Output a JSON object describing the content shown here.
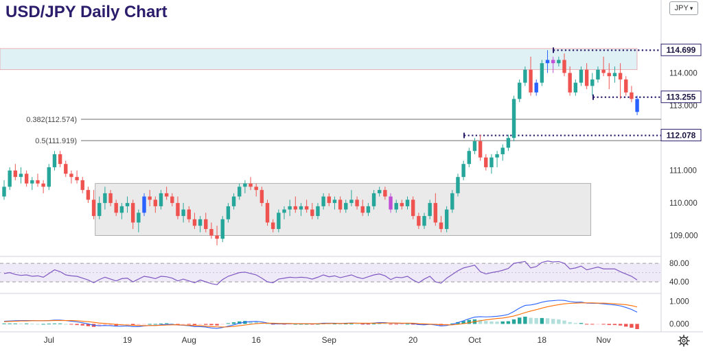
{
  "title": "USD/JPY Daily Chart",
  "currency_selector": {
    "value": "JPY",
    "icon": "chevron-down-icon"
  },
  "settings_icon": "gear-icon",
  "colors": {
    "up": "#26a69a",
    "down": "#ef5350",
    "up_alt": "#2962ff",
    "down_alt": "#c04fd6",
    "title": "#2b1d6b",
    "dotted": "#2b1d6b",
    "rsi": "#7e57c2",
    "macd_line": "#2962ff",
    "signal_line": "#ff6d00",
    "range_box": "#e6e6e6",
    "resistance_zone": "#dff1f5"
  },
  "chart_data": [
    {
      "type": "candlestick",
      "x_labels": [
        "Jul",
        "19",
        "Aug",
        "16",
        "Sep",
        "20",
        "Oct",
        "18",
        "Nov"
      ],
      "y_ticks": [
        "109.000",
        "110.000",
        "111.000",
        "112.000",
        "113.000",
        "114.000"
      ],
      "ylim": [
        108.4,
        115.4
      ],
      "price_labels": [
        "114.699",
        "113.255",
        "112.078"
      ],
      "fib_levels": [
        {
          "label": "0.382(112.574)",
          "value": 112.574
        },
        {
          "label": "0.5(111.919)",
          "value": 111.919
        }
      ],
      "zones": [
        {
          "kind": "resistance",
          "from": 114.1,
          "to": 114.75
        },
        {
          "kind": "range",
          "from": 109.0,
          "to": 110.6,
          "start_index": 17,
          "end_index": 104
        }
      ],
      "ohlc": [
        [
          110.2,
          110.7,
          110.1,
          110.5
        ],
        [
          110.5,
          111.1,
          110.4,
          111.0
        ],
        [
          111.0,
          111.2,
          110.7,
          110.8
        ],
        [
          110.8,
          111.1,
          110.6,
          110.9
        ],
        [
          110.9,
          111.0,
          110.5,
          110.6
        ],
        [
          110.6,
          110.8,
          110.4,
          110.7
        ],
        [
          110.7,
          110.9,
          110.5,
          110.6
        ],
        [
          110.6,
          110.7,
          110.3,
          110.5
        ],
        [
          110.5,
          111.2,
          110.4,
          111.1
        ],
        [
          111.1,
          111.6,
          111.0,
          111.5
        ],
        [
          111.5,
          111.6,
          111.1,
          111.2
        ],
        [
          111.2,
          111.3,
          110.8,
          110.9
        ],
        [
          110.9,
          111.0,
          110.6,
          110.8
        ],
        [
          110.8,
          111.0,
          110.6,
          110.7
        ],
        [
          110.7,
          110.8,
          110.3,
          110.4
        ],
        [
          110.4,
          110.5,
          110.0,
          110.1
        ],
        [
          110.1,
          110.4,
          109.5,
          109.6
        ],
        [
          109.6,
          110.2,
          109.5,
          110.0
        ],
        [
          110.0,
          110.5,
          109.8,
          110.3
        ],
        [
          110.3,
          110.4,
          109.9,
          110.0
        ],
        [
          110.0,
          110.1,
          109.6,
          109.7
        ],
        [
          109.7,
          110.0,
          109.5,
          109.9
        ],
        [
          109.9,
          110.2,
          109.7,
          110.0
        ],
        [
          110.0,
          110.1,
          109.2,
          109.4
        ],
        [
          109.4,
          109.8,
          109.1,
          109.7
        ],
        [
          109.7,
          110.3,
          109.6,
          110.2
        ],
        [
          110.2,
          110.4,
          109.9,
          110.1
        ],
        [
          110.1,
          110.2,
          109.7,
          109.9
        ],
        [
          109.9,
          110.4,
          109.8,
          110.3
        ],
        [
          110.3,
          110.5,
          110.1,
          110.2
        ],
        [
          110.2,
          110.3,
          109.9,
          110.0
        ],
        [
          110.0,
          110.2,
          109.5,
          109.6
        ],
        [
          109.6,
          110.0,
          109.4,
          109.8
        ],
        [
          109.8,
          109.9,
          109.4,
          109.5
        ],
        [
          109.5,
          109.7,
          109.2,
          109.3
        ],
        [
          109.3,
          109.6,
          109.1,
          109.5
        ],
        [
          109.5,
          109.7,
          109.1,
          109.2
        ],
        [
          109.2,
          109.4,
          108.9,
          109.0
        ],
        [
          109.0,
          109.3,
          108.7,
          108.9
        ],
        [
          108.9,
          109.6,
          108.8,
          109.5
        ],
        [
          109.5,
          110.0,
          109.4,
          109.9
        ],
        [
          109.9,
          110.3,
          109.8,
          110.2
        ],
        [
          110.2,
          110.6,
          110.1,
          110.5
        ],
        [
          110.5,
          110.7,
          110.3,
          110.6
        ],
        [
          110.6,
          110.8,
          110.4,
          110.5
        ],
        [
          110.5,
          110.6,
          110.2,
          110.4
        ],
        [
          110.4,
          110.5,
          109.9,
          110.0
        ],
        [
          110.0,
          110.1,
          109.3,
          109.4
        ],
        [
          109.4,
          109.5,
          109.1,
          109.2
        ],
        [
          109.2,
          109.8,
          109.1,
          109.7
        ],
        [
          109.7,
          109.9,
          109.5,
          109.8
        ],
        [
          109.8,
          110.1,
          109.6,
          109.9
        ],
        [
          109.9,
          110.2,
          109.7,
          109.8
        ],
        [
          109.8,
          110.0,
          109.6,
          109.9
        ],
        [
          109.9,
          110.1,
          109.7,
          109.8
        ],
        [
          109.8,
          110.0,
          109.5,
          109.6
        ],
        [
          109.6,
          110.0,
          109.5,
          109.9
        ],
        [
          109.9,
          110.3,
          109.8,
          110.2
        ],
        [
          110.2,
          110.3,
          109.9,
          110.0
        ],
        [
          110.0,
          110.2,
          109.8,
          110.1
        ],
        [
          110.1,
          110.2,
          109.7,
          109.8
        ],
        [
          109.8,
          110.1,
          109.7,
          110.0
        ],
        [
          110.0,
          110.4,
          109.9,
          110.1
        ],
        [
          110.1,
          110.2,
          109.8,
          109.9
        ],
        [
          109.9,
          110.1,
          109.6,
          109.7
        ],
        [
          109.7,
          110.0,
          109.6,
          109.9
        ],
        [
          109.9,
          110.4,
          109.8,
          110.3
        ],
        [
          110.3,
          110.5,
          110.2,
          110.4
        ],
        [
          110.4,
          110.5,
          110.1,
          110.2
        ],
        [
          110.2,
          110.3,
          109.7,
          109.8
        ],
        [
          109.8,
          110.1,
          109.7,
          110.0
        ],
        [
          110.0,
          110.1,
          109.8,
          109.9
        ],
        [
          109.9,
          110.2,
          109.8,
          110.1
        ],
        [
          110.1,
          110.2,
          109.5,
          109.6
        ],
        [
          109.6,
          109.7,
          109.2,
          109.3
        ],
        [
          109.3,
          109.7,
          109.2,
          109.6
        ],
        [
          109.6,
          110.1,
          109.5,
          110.0
        ],
        [
          110.0,
          110.3,
          109.3,
          109.4
        ],
        [
          109.4,
          109.6,
          109.1,
          109.2
        ],
        [
          109.2,
          109.9,
          109.1,
          109.8
        ],
        [
          109.8,
          110.4,
          109.7,
          110.3
        ],
        [
          110.3,
          110.9,
          110.2,
          110.8
        ],
        [
          110.8,
          111.3,
          110.7,
          111.2
        ],
        [
          111.2,
          111.7,
          111.1,
          111.6
        ],
        [
          111.6,
          112.0,
          111.5,
          111.9
        ],
        [
          111.9,
          112.1,
          111.3,
          111.4
        ],
        [
          111.4,
          111.5,
          111.0,
          111.1
        ],
        [
          111.1,
          111.5,
          110.9,
          111.4
        ],
        [
          111.4,
          111.6,
          111.1,
          111.5
        ],
        [
          111.5,
          111.8,
          111.3,
          111.7
        ],
        [
          111.7,
          112.1,
          111.6,
          112.0
        ],
        [
          112.0,
          113.3,
          111.9,
          113.2
        ],
        [
          113.2,
          113.8,
          113.1,
          113.7
        ],
        [
          113.7,
          114.2,
          113.6,
          114.1
        ],
        [
          114.1,
          114.5,
          113.3,
          113.4
        ],
        [
          113.4,
          113.8,
          113.3,
          113.7
        ],
        [
          113.7,
          114.4,
          113.6,
          114.3
        ],
        [
          114.3,
          114.7,
          114.0,
          114.4
        ],
        [
          114.4,
          114.5,
          114.0,
          114.3
        ],
        [
          114.3,
          114.5,
          114.2,
          114.4
        ],
        [
          114.4,
          114.6,
          113.9,
          114.0
        ],
        [
          114.0,
          114.2,
          113.3,
          113.4
        ],
        [
          113.4,
          113.8,
          113.3,
          113.7
        ],
        [
          113.7,
          114.2,
          113.6,
          114.1
        ],
        [
          114.1,
          114.3,
          113.5,
          113.6
        ],
        [
          113.6,
          114.0,
          113.3,
          113.8
        ],
        [
          113.8,
          114.2,
          113.7,
          114.1
        ],
        [
          114.1,
          114.5,
          113.9,
          114.0
        ],
        [
          114.0,
          114.3,
          113.5,
          113.9
        ],
        [
          113.9,
          114.2,
          113.7,
          114.0
        ],
        [
          114.0,
          114.3,
          113.2,
          113.8
        ],
        [
          113.8,
          113.9,
          113.3,
          113.4
        ],
        [
          113.4,
          113.6,
          113.1,
          113.2
        ],
        [
          113.2,
          113.3,
          112.7,
          112.8
        ]
      ]
    },
    {
      "type": "line",
      "name": "RSI",
      "y_ticks": [
        "80.00",
        "40.00"
      ],
      "ylim": [
        15,
        95
      ],
      "values": [
        58,
        60,
        56,
        54,
        55,
        52,
        53,
        50,
        58,
        66,
        62,
        55,
        53,
        52,
        48,
        44,
        38,
        45,
        50,
        46,
        42,
        47,
        48,
        40,
        46,
        52,
        50,
        47,
        52,
        51,
        48,
        42,
        46,
        42,
        38,
        44,
        40,
        36,
        34,
        45,
        52,
        56,
        60,
        61,
        58,
        55,
        48,
        40,
        38,
        46,
        48,
        50,
        49,
        50,
        49,
        46,
        50,
        55,
        51,
        53,
        49,
        52,
        55,
        50,
        47,
        51,
        55,
        57,
        53,
        45,
        50,
        49,
        52,
        44,
        38,
        46,
        52,
        40,
        37,
        48,
        56,
        64,
        70,
        73,
        76,
        62,
        57,
        60,
        62,
        65,
        69,
        80,
        82,
        84,
        70,
        73,
        82,
        85,
        83,
        84,
        80,
        68,
        70,
        74,
        66,
        69,
        72,
        68,
        68,
        68,
        62,
        57,
        52,
        44
      ]
    },
    {
      "type": "line",
      "name": "MACD",
      "y_ticks": [
        "1.000",
        "0.000"
      ],
      "ylim": [
        -0.35,
        1.35
      ],
      "macd": [
        0.12,
        0.13,
        0.14,
        0.15,
        0.15,
        0.15,
        0.14,
        0.14,
        0.15,
        0.17,
        0.17,
        0.15,
        0.12,
        0.09,
        0.05,
        0.0,
        -0.06,
        -0.08,
        -0.07,
        -0.08,
        -0.1,
        -0.1,
        -0.09,
        -0.12,
        -0.12,
        -0.09,
        -0.07,
        -0.07,
        -0.04,
        -0.02,
        -0.02,
        -0.05,
        -0.06,
        -0.08,
        -0.12,
        -0.12,
        -0.14,
        -0.18,
        -0.2,
        -0.16,
        -0.1,
        -0.04,
        0.03,
        0.08,
        0.1,
        0.11,
        0.09,
        0.04,
        0.0,
        0.0,
        0.0,
        0.01,
        0.01,
        0.01,
        0.01,
        0.0,
        0.01,
        0.03,
        0.03,
        0.03,
        0.02,
        0.03,
        0.04,
        0.03,
        0.02,
        0.02,
        0.04,
        0.06,
        0.06,
        0.03,
        0.03,
        0.02,
        0.03,
        0.01,
        -0.03,
        -0.04,
        -0.02,
        -0.05,
        -0.09,
        -0.07,
        -0.02,
        0.06,
        0.14,
        0.23,
        0.3,
        0.32,
        0.31,
        0.32,
        0.34,
        0.37,
        0.42,
        0.55,
        0.7,
        0.82,
        0.84,
        0.89,
        0.96,
        1.01,
        1.03,
        1.05,
        1.04,
        0.99,
        0.96,
        0.97,
        0.92,
        0.91,
        0.91,
        0.89,
        0.86,
        0.84,
        0.8,
        0.73,
        0.64,
        0.52
      ],
      "signal": [
        0.1,
        0.11,
        0.12,
        0.13,
        0.13,
        0.14,
        0.14,
        0.14,
        0.14,
        0.15,
        0.15,
        0.15,
        0.15,
        0.14,
        0.12,
        0.1,
        0.07,
        0.04,
        0.02,
        0.0,
        -0.02,
        -0.04,
        -0.05,
        -0.06,
        -0.07,
        -0.08,
        -0.07,
        -0.07,
        -0.06,
        -0.05,
        -0.04,
        -0.04,
        -0.05,
        -0.06,
        -0.07,
        -0.08,
        -0.1,
        -0.12,
        -0.13,
        -0.14,
        -0.13,
        -0.11,
        -0.08,
        -0.05,
        -0.02,
        0.01,
        0.03,
        0.03,
        0.03,
        0.02,
        0.02,
        0.02,
        0.01,
        0.01,
        0.01,
        0.01,
        0.01,
        0.01,
        0.02,
        0.02,
        0.02,
        0.02,
        0.03,
        0.03,
        0.03,
        0.03,
        0.03,
        0.03,
        0.04,
        0.04,
        0.04,
        0.03,
        0.03,
        0.03,
        0.01,
        0.0,
        -0.01,
        -0.02,
        -0.03,
        -0.04,
        -0.04,
        -0.02,
        0.01,
        0.05,
        0.1,
        0.14,
        0.18,
        0.21,
        0.24,
        0.26,
        0.3,
        0.35,
        0.42,
        0.5,
        0.57,
        0.63,
        0.7,
        0.76,
        0.81,
        0.85,
        0.89,
        0.91,
        0.92,
        0.93,
        0.93,
        0.93,
        0.92,
        0.92,
        0.91,
        0.89,
        0.87,
        0.85,
        0.81,
        0.75
      ]
    }
  ]
}
